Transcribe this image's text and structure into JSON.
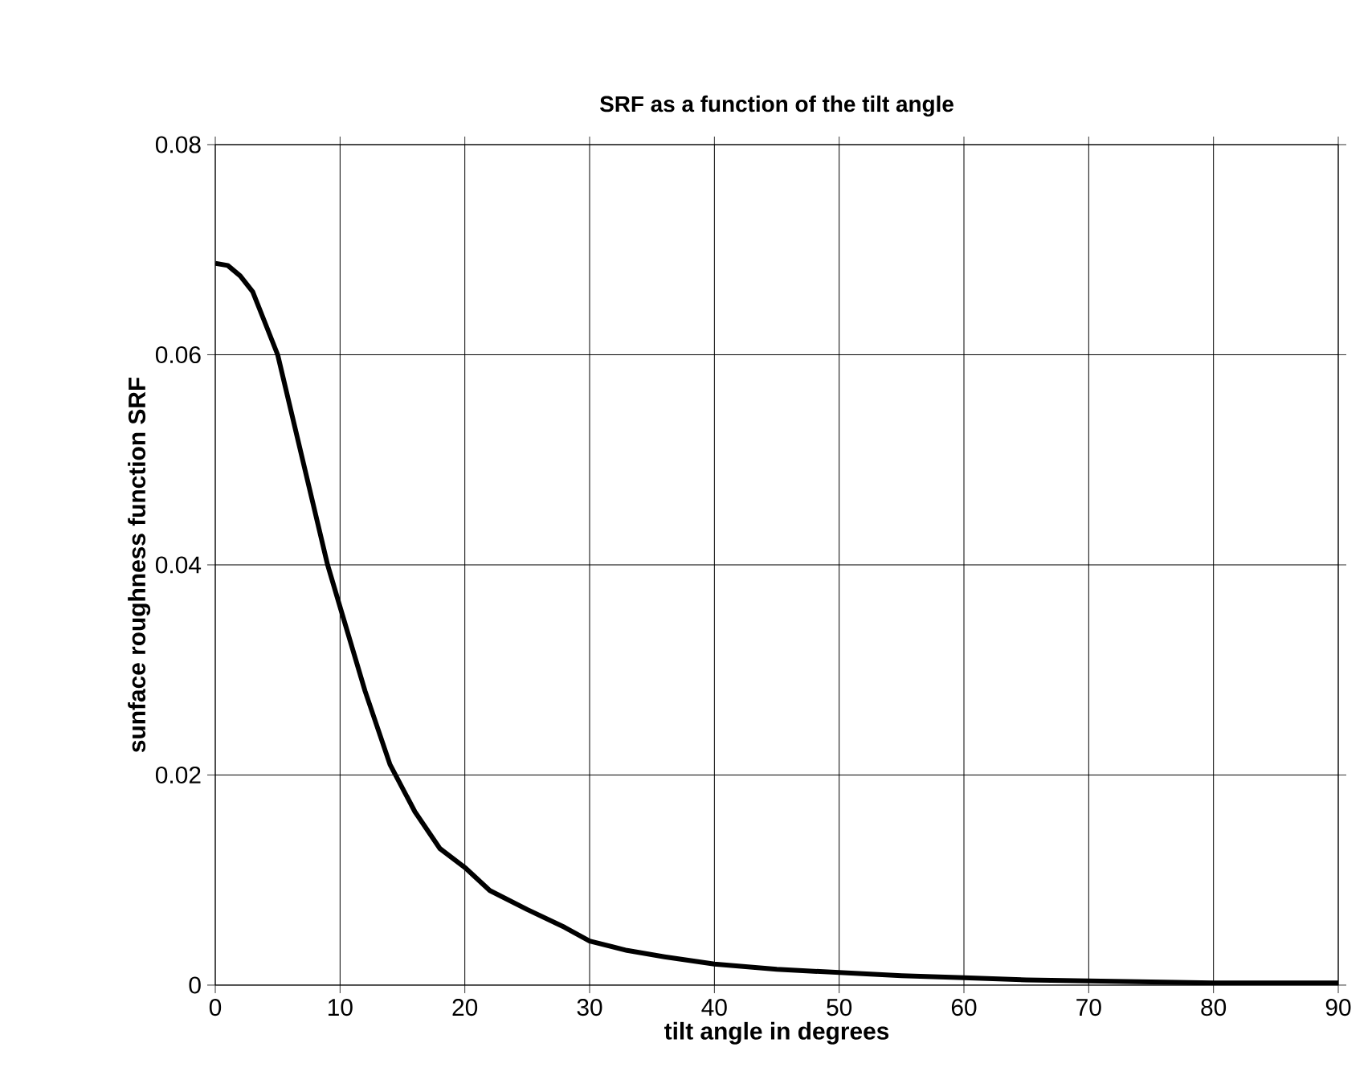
{
  "chart_data": {
    "type": "line",
    "title": "SRF as a function of the tilt angle",
    "xlabel": "tilt angle in degrees",
    "ylabel": "sunface roughness function SRF",
    "x": [
      0,
      1,
      2,
      3,
      4,
      5,
      6,
      7,
      8,
      9,
      10,
      12,
      14,
      16,
      18,
      20,
      22,
      25,
      28,
      30,
      33,
      36,
      40,
      45,
      50,
      55,
      60,
      65,
      70,
      75,
      80,
      85,
      90
    ],
    "series": [
      {
        "color": "#000000",
        "values": [
          0.0687,
          0.0685,
          0.0675,
          0.066,
          0.063,
          0.06,
          0.055,
          0.05,
          0.045,
          0.04,
          0.036,
          0.028,
          0.021,
          0.0165,
          0.013,
          0.0112,
          0.009,
          0.0072,
          0.0055,
          0.0042,
          0.0033,
          0.0027,
          0.002,
          0.0015,
          0.0012,
          0.0009,
          0.0007,
          0.0005,
          0.0004,
          0.0003,
          0.0002,
          0.0002,
          0.0002
        ]
      }
    ],
    "xlim": [
      0,
      90
    ],
    "xticks": [
      0,
      10,
      20,
      30,
      40,
      50,
      60,
      70,
      80,
      90
    ],
    "ylim": [
      0,
      0.08
    ],
    "yticks": [
      0,
      0.02,
      0.04,
      0.06,
      0.08
    ],
    "grid": true,
    "marker": "none",
    "line_style": "solid"
  }
}
